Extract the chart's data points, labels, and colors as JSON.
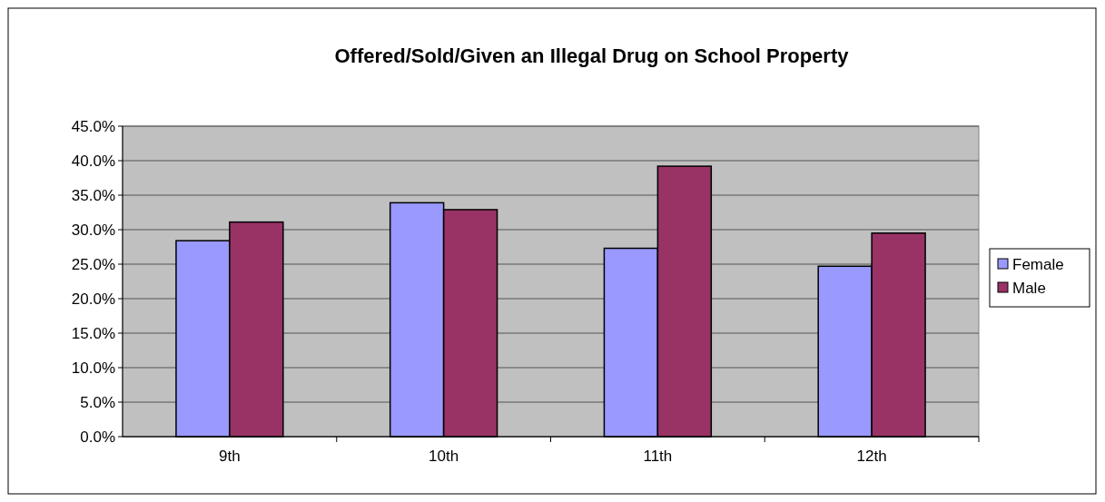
{
  "chart_data": {
    "type": "bar",
    "title": "Offered/Sold/Given an Illegal Drug on School Property",
    "categories": [
      "9th",
      "10th",
      "11th",
      "12th"
    ],
    "series": [
      {
        "name": "Female",
        "color": "#9999ff",
        "values": [
          28.4,
          33.9,
          27.3,
          24.7
        ]
      },
      {
        "name": "Male",
        "color": "#993366",
        "values": [
          31.1,
          32.9,
          39.2,
          29.5
        ]
      }
    ],
    "ylim": [
      0,
      45
    ],
    "yticks": [
      {
        "value": 0,
        "label": "0.0%"
      },
      {
        "value": 5,
        "label": "5.0%"
      },
      {
        "value": 10,
        "label": "10.0%"
      },
      {
        "value": 15,
        "label": "15.0%"
      },
      {
        "value": 20,
        "label": "20.0%"
      },
      {
        "value": 25,
        "label": "25.0%"
      },
      {
        "value": 30,
        "label": "30.0%"
      },
      {
        "value": 35,
        "label": "35.0%"
      },
      {
        "value": 40,
        "label": "40.0%"
      },
      {
        "value": 45,
        "label": "45.0%"
      }
    ],
    "grid": "y",
    "legend": "right"
  }
}
